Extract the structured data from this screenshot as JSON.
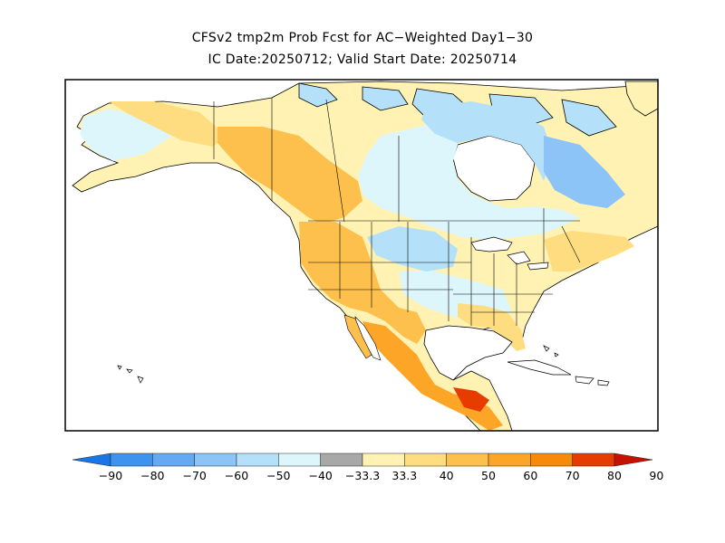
{
  "title": {
    "line1": "CFSv2 tmp2m Prob Fcst for AC−Weighted Day1−30",
    "line2": "IC Date:20250712; Valid Start Date: 20250714"
  },
  "legend": {
    "bins": [
      {
        "color": "#1a75e6"
      },
      {
        "color": "#3d93ee"
      },
      {
        "color": "#64aaf3"
      },
      {
        "color": "#8dc4f7"
      },
      {
        "color": "#b4e0f9"
      },
      {
        "color": "#dcf6fb"
      },
      {
        "color": "#a8a8a8"
      },
      {
        "color": "#fff2b3"
      },
      {
        "color": "#fedc80"
      },
      {
        "color": "#fdc04c"
      },
      {
        "color": "#fca526"
      },
      {
        "color": "#f88a0a"
      },
      {
        "color": "#e63c00"
      },
      {
        "color": "#c61100"
      }
    ],
    "labels": [
      "−90",
      "−80",
      "−70",
      "−60",
      "−50",
      "−40",
      "−33.3",
      "33.3",
      "40",
      "50",
      "60",
      "70",
      "80",
      "90"
    ]
  },
  "colors": {
    "land_default": "#fff2b3",
    "frame": "#000000",
    "border_lines": "#000000"
  }
}
